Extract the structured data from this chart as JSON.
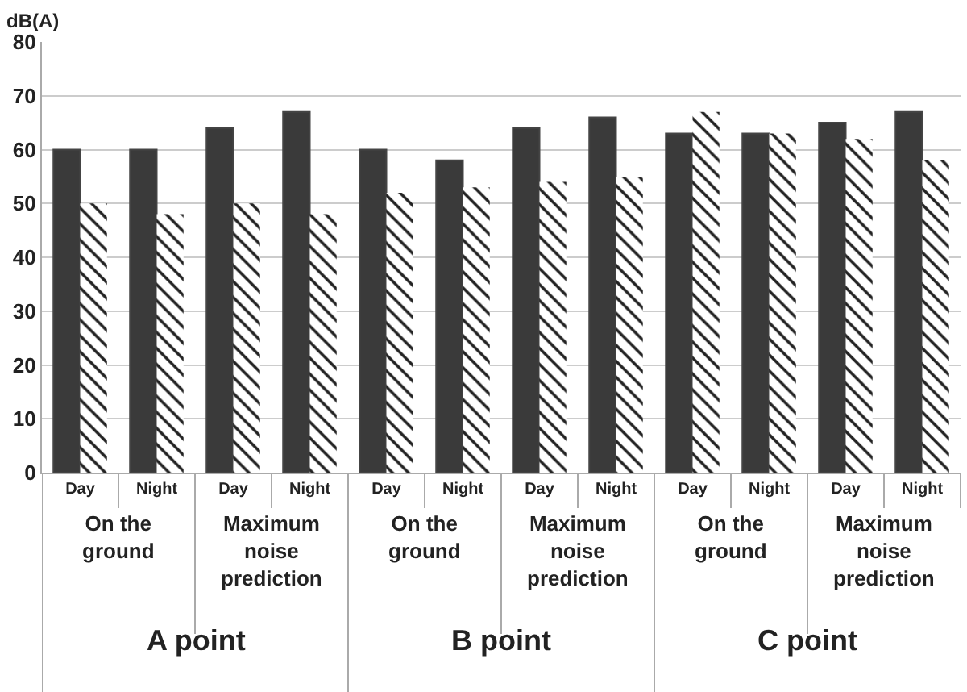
{
  "chart_data": {
    "type": "bar",
    "ylabel": "dB(A)",
    "categories": [
      "Day",
      "Night",
      "Day",
      "Night",
      "Day",
      "Night",
      "Day",
      "Night",
      "Day",
      "Night",
      "Day",
      "Night"
    ],
    "series": [
      {
        "color": "#3a3a3a",
        "values": [
          60,
          60,
          64,
          67,
          60,
          58,
          64,
          66,
          63,
          63,
          65,
          67
        ]
      },
      {
        "color": "#ffffff",
        "values": [
          50,
          48,
          50,
          48,
          52,
          53,
          54,
          55,
          67,
          63,
          62,
          58
        ]
      }
    ],
    "ylim": [
      0,
      80
    ],
    "yticks": [
      0,
      10,
      20,
      30,
      40,
      50,
      60,
      70,
      80
    ],
    "grid": "y",
    "annotations": [
      "On the\nground",
      "Maximum\nnoise\nprediction",
      "On the\nground",
      "Maximum\nnoise\nprediction",
      "On the\nground",
      "Maximum\nnoise\nprediction",
      "A point",
      "B point",
      "C point"
    ]
  }
}
